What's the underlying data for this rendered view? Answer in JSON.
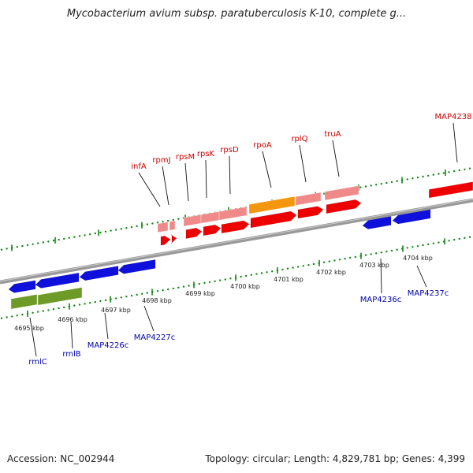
{
  "title": "Mycobacterium avium subsp. paratuberculosis K-10, complete g...",
  "footer": {
    "accession": "Accession: NC_002944",
    "summary": "Topology: circular; Length: 4,829,781 bp; Genes: 4,399"
  },
  "colors": {
    "forward_gene": "#ee0000",
    "forward_light": "#f08a8a",
    "reverse_gene": "#1010dd",
    "rna_gene": "#f5960f",
    "pseudo_gene": "#6e9a28",
    "tick": "#118811",
    "backbone": "#888888",
    "forward_label": "#cc0000",
    "reverse_label": "#0000aa"
  },
  "scale_labels": [
    "4695 kbp",
    "4696 kbp",
    "4697 kbp",
    "4698 kbp",
    "4699 kbp",
    "4700 kbp",
    "4701 kbp",
    "4702 kbp",
    "4703 kbp",
    "4704 kbp"
  ],
  "forward_gene_labels": [
    "infA",
    "rpmJ",
    "rpsM",
    "rpsK",
    "rpsD",
    "rpoA",
    "rplQ",
    "truA",
    "MAP4238"
  ],
  "reverse_gene_labels": [
    "rmlC",
    "rmlB",
    "MAP4226c",
    "MAP4227c",
    "MAP4236c",
    "MAP4237c"
  ]
}
